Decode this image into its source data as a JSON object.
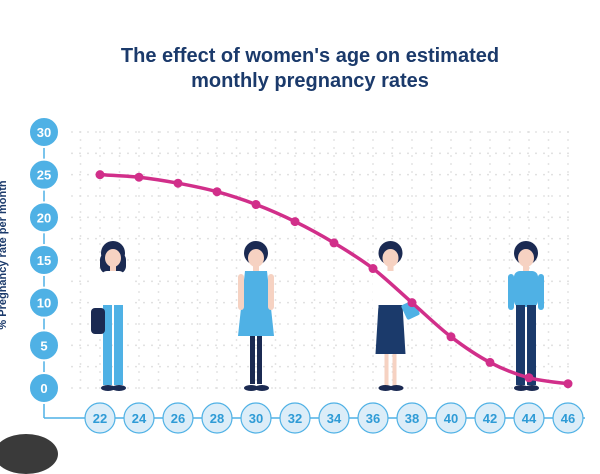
{
  "colors": {
    "title": "#1b3a6b",
    "accent_blue": "#4fb1e5",
    "tick_fill": "#dcedf8",
    "tick_text": "#2e9bd6",
    "curve": "#d12f8a",
    "grid": "#dcdcdc",
    "axis_text": "#1b3a6b"
  },
  "chart_data": {
    "type": "line",
    "title_lines": [
      "The effect of women's age on estimated",
      "monthly pregnancy rates"
    ],
    "ylabel": "% Pregnancy rate per month",
    "xlabel": "",
    "x_ticks": [
      "22",
      "24",
      "26",
      "28",
      "30",
      "32",
      "34",
      "36",
      "38",
      "40",
      "42",
      "44",
      "46"
    ],
    "y_ticks": [
      "30",
      "25",
      "20",
      "15",
      "10",
      "5",
      "0"
    ],
    "xlim": [
      22,
      46
    ],
    "ylim": [
      0,
      30
    ],
    "grid": true,
    "x": [
      22,
      24,
      26,
      28,
      30,
      32,
      34,
      36,
      38,
      40,
      42,
      44,
      46
    ],
    "y": [
      25,
      24.7,
      24,
      23,
      21.5,
      19.5,
      17,
      14,
      10,
      6,
      3,
      1.2,
      0.5
    ]
  },
  "illustrations": [
    {
      "name": "woman-with-bag-figure",
      "age": 22
    },
    {
      "name": "woman-in-dress-figure",
      "age": 30
    },
    {
      "name": "woman-in-blouse-skirt-figure",
      "age": 37
    },
    {
      "name": "woman-in-blue-top-figure",
      "age": 44
    }
  ]
}
